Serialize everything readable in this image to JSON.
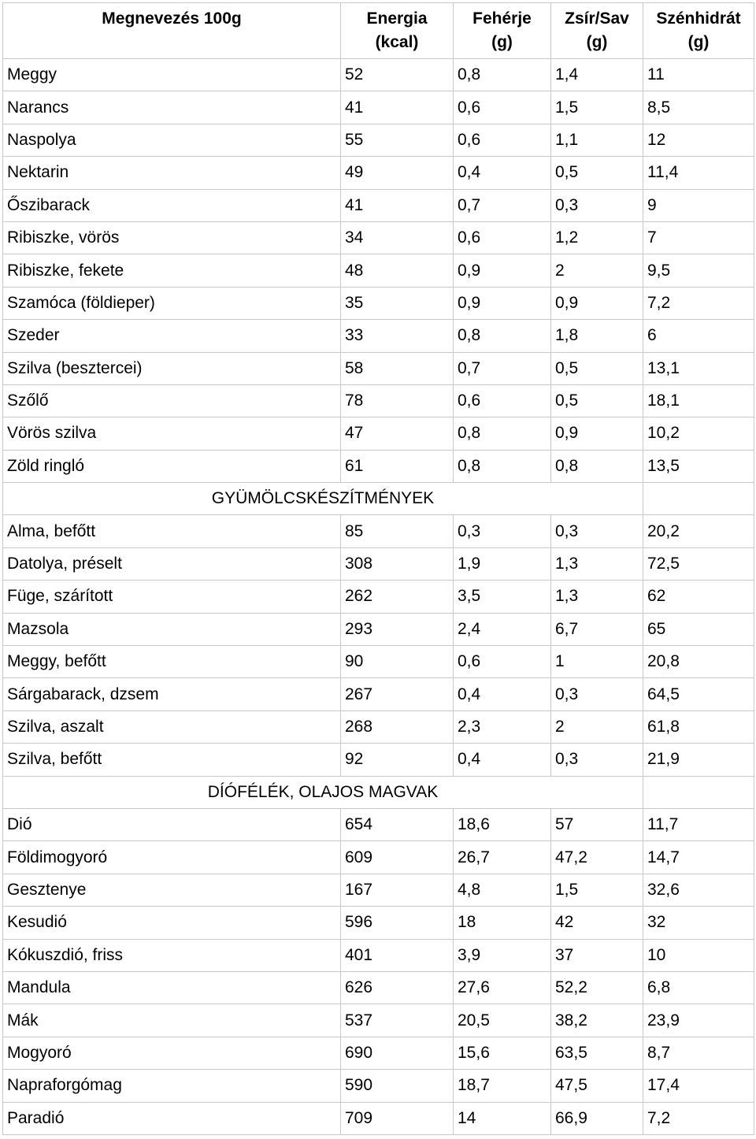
{
  "header": {
    "name": "Megnevezés 100g",
    "energy": [
      "Energia",
      "(kcal)"
    ],
    "protein": [
      "Fehérje",
      "(g)"
    ],
    "fat": [
      "Zsír/Sav",
      "(g)"
    ],
    "carbs": [
      "Szénhidrát",
      "(g)"
    ]
  },
  "rows": [
    {
      "name": "Meggy",
      "energy": "52",
      "protein": "0,8",
      "fat": "1,4",
      "carbs": "11"
    },
    {
      "name": "Narancs",
      "energy": "41",
      "protein": "0,6",
      "fat": "1,5",
      "carbs": "8,5"
    },
    {
      "name": "Naspolya",
      "energy": "55",
      "protein": "0,6",
      "fat": "1,1",
      "carbs": "12"
    },
    {
      "name": "Nektarin",
      "energy": "49",
      "protein": "0,4",
      "fat": "0,5",
      "carbs": "11,4"
    },
    {
      "name": "Őszibarack",
      "energy": "41",
      "protein": "0,7",
      "fat": "0,3",
      "carbs": "9"
    },
    {
      "name": "Ribiszke, vörös",
      "energy": "34",
      "protein": "0,6",
      "fat": "1,2",
      "carbs": "7"
    },
    {
      "name": "Ribiszke, fekete",
      "energy": "48",
      "protein": "0,9",
      "fat": "2",
      "carbs": "9,5"
    },
    {
      "name": "Szamóca (földieper)",
      "energy": "35",
      "protein": "0,9",
      "fat": "0,9",
      "carbs": "7,2"
    },
    {
      "name": "Szeder",
      "energy": "33",
      "protein": "0,8",
      "fat": "1,8",
      "carbs": "6"
    },
    {
      "name": "Szilva (besztercei)",
      "energy": "58",
      "protein": "0,7",
      "fat": "0,5",
      "carbs": "13,1"
    },
    {
      "name": "Szőlő",
      "energy": "78",
      "protein": "0,6",
      "fat": "0,5",
      "carbs": "18,1"
    },
    {
      "name": "Vörös szilva",
      "energy": "47",
      "protein": "0,8",
      "fat": "0,9",
      "carbs": "10,2"
    },
    {
      "name": "Zöld ringló",
      "energy": "61",
      "protein": "0,8",
      "fat": "0,8",
      "carbs": "13,5"
    },
    {
      "section": "GYÜMÖLCSKÉSZÍTMÉNYEK"
    },
    {
      "name": "Alma, befőtt",
      "energy": "85",
      "protein": "0,3",
      "fat": "0,3",
      "carbs": "20,2"
    },
    {
      "name": "Datolya, préselt",
      "energy": "308",
      "protein": "1,9",
      "fat": "1,3",
      "carbs": "72,5"
    },
    {
      "name": "Füge, szárított",
      "energy": "262",
      "protein": "3,5",
      "fat": "1,3",
      "carbs": "62"
    },
    {
      "name": "Mazsola",
      "energy": "293",
      "protein": "2,4",
      "fat": "6,7",
      "carbs": "65"
    },
    {
      "name": "Meggy, befőtt",
      "energy": "90",
      "protein": "0,6",
      "fat": "1",
      "carbs": "20,8"
    },
    {
      "name": "Sárgabarack, dzsem",
      "energy": "267",
      "protein": "0,4",
      "fat": "0,3",
      "carbs": "64,5"
    },
    {
      "name": "Szilva, aszalt",
      "energy": "268",
      "protein": "2,3",
      "fat": "2",
      "carbs": "61,8"
    },
    {
      "name": "Szilva, befőtt",
      "energy": "92",
      "protein": "0,4",
      "fat": "0,3",
      "carbs": "21,9"
    },
    {
      "section": "DÍÓFÉLÉK, OLAJOS MAGVAK"
    },
    {
      "name": "Dió",
      "energy": "654",
      "protein": "18,6",
      "fat": "57",
      "carbs": "11,7"
    },
    {
      "name": "Földimogyoró",
      "energy": "609",
      "protein": "26,7",
      "fat": "47,2",
      "carbs": "14,7"
    },
    {
      "name": "Gesztenye",
      "energy": "167",
      "protein": "4,8",
      "fat": "1,5",
      "carbs": "32,6"
    },
    {
      "name": "Kesudió",
      "energy": "596",
      "protein": "18",
      "fat": "42",
      "carbs": "32"
    },
    {
      "name": "Kókuszdió, friss",
      "energy": "401",
      "protein": "3,9",
      "fat": "37",
      "carbs": "10"
    },
    {
      "name": "Mandula",
      "energy": "626",
      "protein": "27,6",
      "fat": "52,2",
      "carbs": "6,8"
    },
    {
      "name": "Mák",
      "energy": "537",
      "protein": "20,5",
      "fat": "38,2",
      "carbs": "23,9"
    },
    {
      "name": "Mogyoró",
      "energy": "690",
      "protein": "15,6",
      "fat": "63,5",
      "carbs": "8,7"
    },
    {
      "name": "Napraforgómag",
      "energy": "590",
      "protein": "18,7",
      "fat": "47,5",
      "carbs": "17,4"
    },
    {
      "name": "Paradió",
      "energy": "709",
      "protein": "14",
      "fat": "66,9",
      "carbs": "7,2"
    }
  ]
}
